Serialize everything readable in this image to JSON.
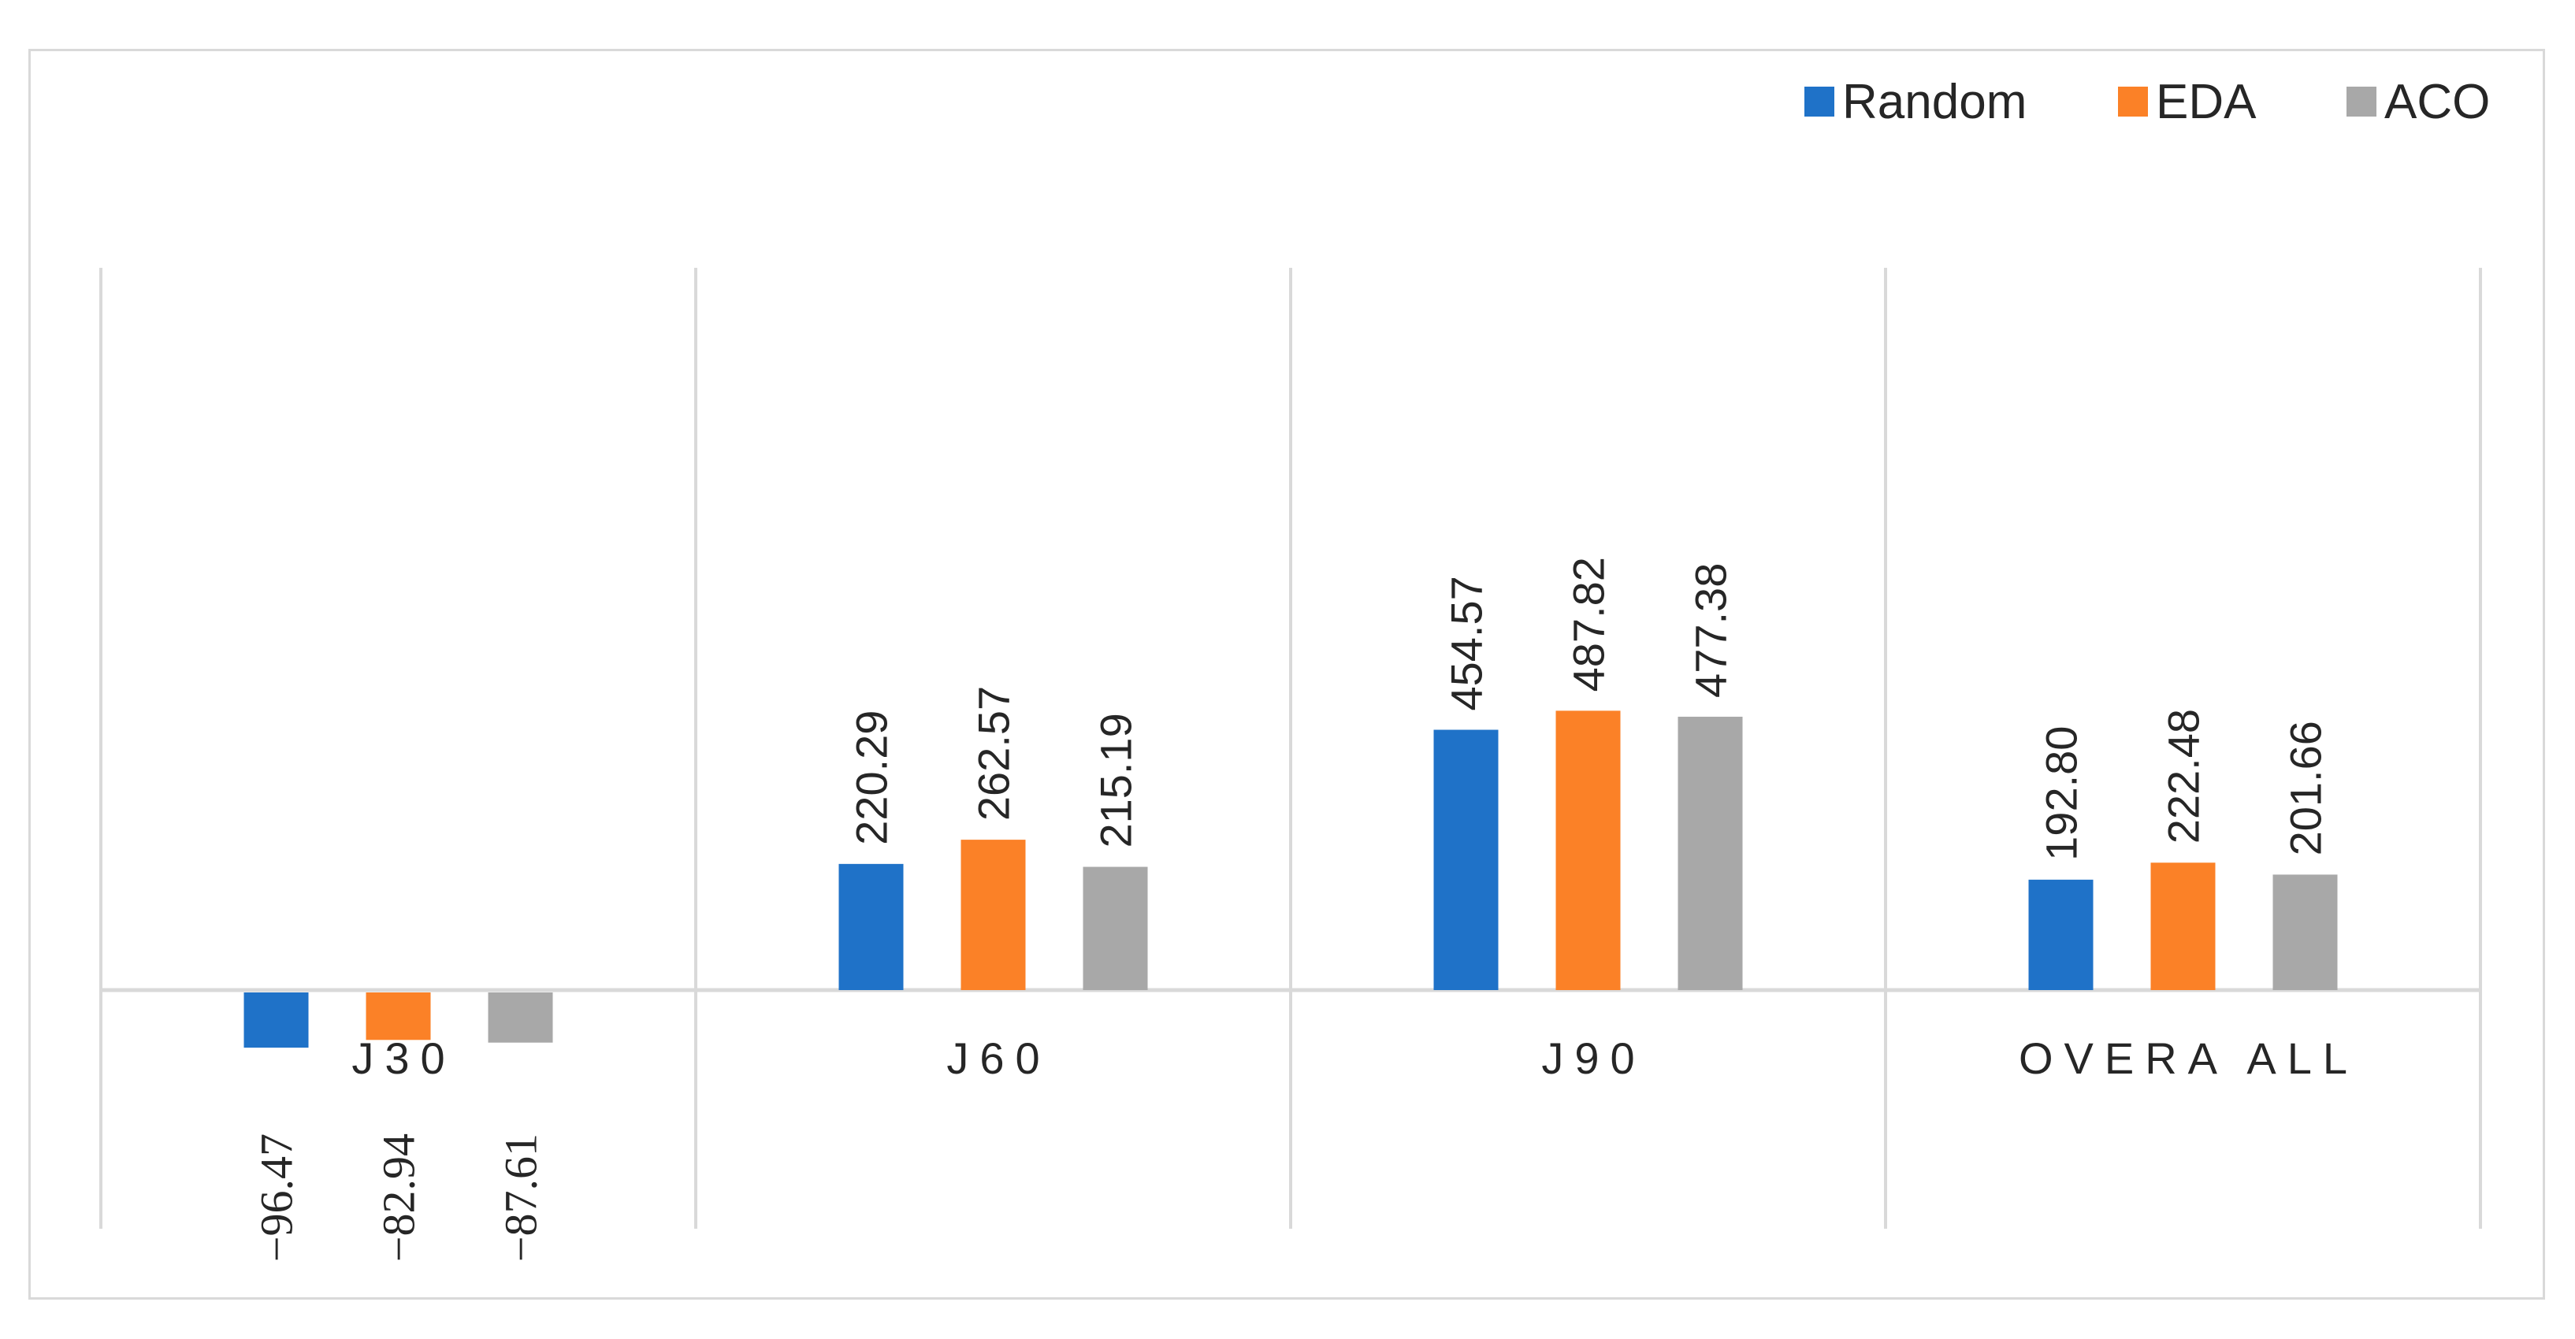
{
  "chart_data": {
    "type": "bar",
    "categories": [
      "J30",
      "J60",
      "J90",
      "OVERA ALL"
    ],
    "series": [
      {
        "name": "Random",
        "color": "#1f72c8",
        "values": [
          -96.47,
          220.29,
          454.57,
          192.8
        ],
        "labels": [
          "−96.47",
          "220.29",
          "454.57",
          "192.80"
        ]
      },
      {
        "name": "EDA",
        "color": "#fb8127",
        "values": [
          -82.94,
          262.57,
          487.82,
          222.48
        ],
        "labels": [
          "−82.94",
          "262.57",
          "487.82",
          "222.48"
        ]
      },
      {
        "name": "ACO",
        "color": "#a8a8a8",
        "values": [
          -87.61,
          215.19,
          477.38,
          201.66
        ],
        "labels": [
          "−87.61",
          "215.19",
          "477.38",
          "201.66"
        ]
      }
    ],
    "legend_position": "top-right",
    "grid": "vertical category separators",
    "title": "",
    "xlabel": "",
    "ylabel": ""
  }
}
